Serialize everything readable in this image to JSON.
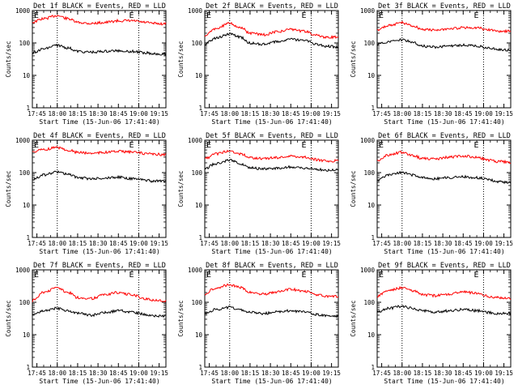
{
  "chart_data": [
    {
      "type": "line",
      "title": "Det 1f BLACK = Events, RED = LLD",
      "xlabel": "Start Time (15-Jun-06 17:41:40)",
      "ylabel": "Counts/sec",
      "x_ticks": [
        "17:45",
        "18:00",
        "18:15",
        "18:30",
        "18:45",
        "19:00",
        "19:15"
      ],
      "y_ticks": [
        "1",
        "10",
        "100",
        "1000"
      ],
      "ylim": [
        1,
        1000
      ],
      "y_scale": "log",
      "markers": [
        "E",
        "E"
      ],
      "series": [
        {
          "name": "LLD",
          "color": "#ff0000",
          "x": [
            "17:41",
            "17:50",
            "18:00",
            "18:08",
            "18:15",
            "18:25",
            "18:35",
            "18:45",
            "18:55",
            "19:05",
            "19:10",
            "19:20"
          ],
          "values": [
            430,
            560,
            700,
            560,
            430,
            400,
            430,
            480,
            480,
            430,
            400,
            390
          ]
        },
        {
          "name": "Events",
          "color": "#000000",
          "x": [
            "17:41",
            "17:50",
            "18:00",
            "18:08",
            "18:15",
            "18:25",
            "18:35",
            "18:45",
            "18:55",
            "19:05",
            "19:10",
            "19:20"
          ],
          "values": [
            50,
            65,
            85,
            70,
            55,
            52,
            55,
            58,
            55,
            50,
            47,
            46
          ]
        }
      ]
    },
    {
      "type": "line",
      "title": "Det 2f BLACK = Events, RED = LLD",
      "xlabel": "Start Time (15-Jun-06 17:41:40)",
      "ylabel": "Counts/sec",
      "x_ticks": [
        "17:45",
        "18:00",
        "18:15",
        "18:30",
        "18:45",
        "19:00",
        "19:15"
      ],
      "y_ticks": [
        "1",
        "10",
        "100",
        "1000"
      ],
      "ylim": [
        1,
        1000
      ],
      "y_scale": "log",
      "markers": [
        "E",
        "E"
      ],
      "series": [
        {
          "name": "LLD",
          "color": "#ff0000",
          "x": [
            "17:41",
            "17:50",
            "18:00",
            "18:08",
            "18:15",
            "18:25",
            "18:35",
            "18:45",
            "18:55",
            "19:05",
            "19:10",
            "19:20"
          ],
          "values": [
            160,
            280,
            400,
            300,
            200,
            180,
            220,
            260,
            230,
            170,
            150,
            150
          ]
        },
        {
          "name": "Events",
          "color": "#000000",
          "x": [
            "17:41",
            "17:50",
            "18:00",
            "18:08",
            "18:15",
            "18:25",
            "18:35",
            "18:45",
            "18:55",
            "19:05",
            "19:10",
            "19:20"
          ],
          "values": [
            90,
            140,
            190,
            150,
            100,
            90,
            110,
            130,
            120,
            90,
            80,
            75
          ]
        }
      ]
    },
    {
      "type": "line",
      "title": "Det 3f BLACK = Events, RED = LLD",
      "xlabel": "Start Time (15-Jun-06 17:41:40)",
      "ylabel": "Counts/sec",
      "x_ticks": [
        "17:45",
        "18:00",
        "18:15",
        "18:30",
        "18:45",
        "19:00",
        "19:15"
      ],
      "y_ticks": [
        "1",
        "10",
        "100",
        "1000"
      ],
      "ylim": [
        1,
        1000
      ],
      "y_scale": "log",
      "markers": [
        "E",
        "E"
      ],
      "series": [
        {
          "name": "LLD",
          "color": "#ff0000",
          "x": [
            "17:41",
            "17:50",
            "18:00",
            "18:08",
            "18:15",
            "18:25",
            "18:35",
            "18:45",
            "18:55",
            "19:05",
            "19:10",
            "19:20"
          ],
          "values": [
            250,
            350,
            420,
            330,
            260,
            250,
            270,
            300,
            290,
            250,
            230,
            230
          ]
        },
        {
          "name": "Events",
          "color": "#000000",
          "x": [
            "17:41",
            "17:50",
            "18:00",
            "18:08",
            "18:15",
            "18:25",
            "18:35",
            "18:45",
            "18:55",
            "19:05",
            "19:10",
            "19:20"
          ],
          "values": [
            90,
            110,
            125,
            105,
            80,
            75,
            80,
            85,
            80,
            70,
            62,
            60
          ]
        }
      ]
    },
    {
      "type": "line",
      "title": "Det 4f BLACK = Events, RED = LLD",
      "xlabel": "Start Time (15-Jun-06 17:41:40)",
      "ylabel": "Counts/sec",
      "x_ticks": [
        "17:45",
        "18:00",
        "18:15",
        "18:30",
        "18:45",
        "19:00",
        "19:15"
      ],
      "y_ticks": [
        "1",
        "10",
        "100",
        "1000"
      ],
      "ylim": [
        1,
        1000
      ],
      "y_scale": "log",
      "markers": [
        "E",
        "E"
      ],
      "series": [
        {
          "name": "LLD",
          "color": "#ff0000",
          "x": [
            "17:41",
            "17:50",
            "18:00",
            "18:08",
            "18:15",
            "18:25",
            "18:35",
            "18:45",
            "18:55",
            "19:05",
            "19:10",
            "19:20"
          ],
          "values": [
            430,
            520,
            600,
            500,
            420,
            400,
            420,
            450,
            430,
            390,
            370,
            360
          ]
        },
        {
          "name": "Events",
          "color": "#000000",
          "x": [
            "17:41",
            "17:50",
            "18:00",
            "18:08",
            "18:15",
            "18:25",
            "18:35",
            "18:45",
            "18:55",
            "19:05",
            "19:10",
            "19:20"
          ],
          "values": [
            60,
            85,
            105,
            90,
            70,
            65,
            68,
            72,
            65,
            58,
            55,
            55
          ]
        }
      ]
    },
    {
      "type": "line",
      "title": "Det 5f BLACK = Events, RED = LLD",
      "xlabel": "Start Time (15-Jun-06 17:41:40)",
      "ylabel": "Counts/sec",
      "x_ticks": [
        "17:45",
        "18:00",
        "18:15",
        "18:30",
        "18:45",
        "19:00",
        "19:15"
      ],
      "y_ticks": [
        "1",
        "10",
        "100",
        "1000"
      ],
      "ylim": [
        1,
        1000
      ],
      "y_scale": "log",
      "markers": [
        "E",
        "E"
      ],
      "series": [
        {
          "name": "LLD",
          "color": "#ff0000",
          "x": [
            "17:41",
            "17:50",
            "18:00",
            "18:08",
            "18:15",
            "18:25",
            "18:35",
            "18:45",
            "18:55",
            "19:05",
            "19:10",
            "19:20"
          ],
          "values": [
            260,
            380,
            470,
            380,
            290,
            270,
            290,
            320,
            300,
            250,
            230,
            230
          ]
        },
        {
          "name": "Events",
          "color": "#000000",
          "x": [
            "17:41",
            "17:50",
            "18:00",
            "18:08",
            "18:15",
            "18:25",
            "18:35",
            "18:45",
            "18:55",
            "19:05",
            "19:10",
            "19:20"
          ],
          "values": [
            130,
            190,
            240,
            190,
            140,
            130,
            135,
            150,
            140,
            125,
            120,
            120
          ]
        }
      ]
    },
    {
      "type": "line",
      "title": "Det 6f BLACK = Events, RED = LLD",
      "xlabel": "Start Time (15-Jun-06 17:41:40)",
      "ylabel": "Counts/sec",
      "x_ticks": [
        "17:45",
        "18:00",
        "18:15",
        "18:30",
        "18:45",
        "19:00",
        "19:15"
      ],
      "y_ticks": [
        "1",
        "10",
        "100",
        "1000"
      ],
      "ylim": [
        1,
        1000
      ],
      "y_scale": "log",
      "markers": [
        "E",
        "E"
      ],
      "series": [
        {
          "name": "LLD",
          "color": "#ff0000",
          "x": [
            "17:41",
            "17:50",
            "18:00",
            "18:08",
            "18:15",
            "18:25",
            "18:35",
            "18:45",
            "18:55",
            "19:05",
            "19:10",
            "19:20"
          ],
          "values": [
            220,
            350,
            430,
            340,
            270,
            260,
            300,
            330,
            290,
            240,
            220,
            210
          ]
        },
        {
          "name": "Events",
          "color": "#000000",
          "x": [
            "17:41",
            "17:50",
            "18:00",
            "18:08",
            "18:15",
            "18:25",
            "18:35",
            "18:45",
            "18:55",
            "19:05",
            "19:10",
            "19:20"
          ],
          "values": [
            55,
            85,
            100,
            85,
            70,
            65,
            70,
            75,
            70,
            60,
            52,
            50
          ]
        }
      ]
    },
    {
      "type": "line",
      "title": "Det 7f BLACK = Events, RED = LLD",
      "xlabel": "Start Time (15-Jun-06 17:41:40)",
      "ylabel": "Counts/sec",
      "x_ticks": [
        "17:45",
        "18:00",
        "18:15",
        "18:30",
        "18:45",
        "19:00",
        "19:15"
      ],
      "y_ticks": [
        "1",
        "10",
        "100",
        "1000"
      ],
      "ylim": [
        1,
        1000
      ],
      "y_scale": "log",
      "markers": [
        "E",
        "E"
      ],
      "series": [
        {
          "name": "LLD",
          "color": "#ff0000",
          "x": [
            "17:41",
            "17:50",
            "18:00",
            "18:08",
            "18:15",
            "18:25",
            "18:35",
            "18:45",
            "18:55",
            "19:05",
            "19:10",
            "19:20"
          ],
          "values": [
            110,
            200,
            280,
            200,
            140,
            130,
            170,
            200,
            170,
            130,
            115,
            110
          ]
        },
        {
          "name": "Events",
          "color": "#000000",
          "x": [
            "17:41",
            "17:50",
            "18:00",
            "18:08",
            "18:15",
            "18:25",
            "18:35",
            "18:45",
            "18:55",
            "19:05",
            "19:10",
            "19:20"
          ],
          "values": [
            40,
            55,
            65,
            55,
            45,
            40,
            48,
            55,
            50,
            42,
            38,
            38
          ]
        }
      ]
    },
    {
      "type": "line",
      "title": "Det 8f BLACK = Events, RED = LLD",
      "xlabel": "Start Time (15-Jun-06 17:41:40)",
      "ylabel": "Counts/sec",
      "x_ticks": [
        "17:45",
        "18:00",
        "18:15",
        "18:30",
        "18:45",
        "19:00",
        "19:15"
      ],
      "y_ticks": [
        "1",
        "10",
        "100",
        "1000"
      ],
      "ylim": [
        1,
        1000
      ],
      "y_scale": "log",
      "markers": [
        "E",
        "E"
      ],
      "series": [
        {
          "name": "LLD",
          "color": "#ff0000",
          "x": [
            "17:41",
            "17:50",
            "18:00",
            "18:08",
            "18:15",
            "18:25",
            "18:35",
            "18:45",
            "18:55",
            "19:05",
            "19:10",
            "19:20"
          ],
          "values": [
            180,
            280,
            350,
            280,
            200,
            180,
            210,
            250,
            220,
            170,
            150,
            150
          ]
        },
        {
          "name": "Events",
          "color": "#000000",
          "x": [
            "17:41",
            "17:50",
            "18:00",
            "18:08",
            "18:15",
            "18:25",
            "18:35",
            "18:45",
            "18:55",
            "19:05",
            "19:10",
            "19:20"
          ],
          "values": [
            45,
            60,
            70,
            60,
            50,
            45,
            50,
            55,
            50,
            42,
            38,
            36
          ]
        }
      ]
    },
    {
      "type": "line",
      "title": "Det 9f BLACK = Events, RED = LLD",
      "xlabel": "Start Time (15-Jun-06 17:41:40)",
      "ylabel": "Counts/sec",
      "x_ticks": [
        "17:45",
        "18:00",
        "18:15",
        "18:30",
        "18:45",
        "19:00",
        "19:15"
      ],
      "y_ticks": [
        "1",
        "10",
        "100",
        "1000"
      ],
      "ylim": [
        1,
        1000
      ],
      "y_scale": "log",
      "markers": [
        "E",
        "E"
      ],
      "series": [
        {
          "name": "LLD",
          "color": "#ff0000",
          "x": [
            "17:41",
            "17:50",
            "18:00",
            "18:08",
            "18:15",
            "18:25",
            "18:35",
            "18:45",
            "18:55",
            "19:05",
            "19:10",
            "19:20"
          ],
          "values": [
            150,
            230,
            280,
            230,
            170,
            160,
            180,
            210,
            190,
            150,
            140,
            130
          ]
        },
        {
          "name": "Events",
          "color": "#000000",
          "x": [
            "17:41",
            "17:50",
            "18:00",
            "18:08",
            "18:15",
            "18:25",
            "18:35",
            "18:45",
            "18:55",
            "19:05",
            "19:10",
            "19:20"
          ],
          "values": [
            50,
            65,
            75,
            65,
            55,
            50,
            55,
            60,
            55,
            48,
            45,
            45
          ]
        }
      ]
    }
  ]
}
